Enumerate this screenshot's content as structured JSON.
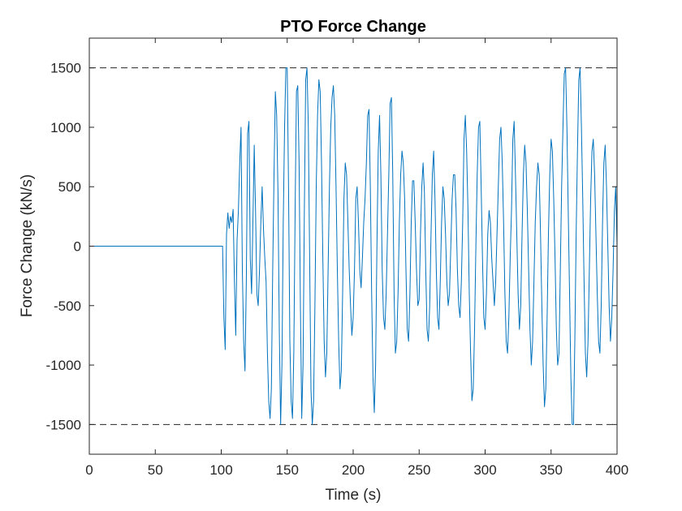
{
  "chart_data": {
    "type": "line",
    "title": "PTO Force Change",
    "xlabel": "Time (s)",
    "ylabel": "Force Change (kN/s)",
    "xlim": [
      0,
      400
    ],
    "ylim": [
      -1750,
      1750
    ],
    "xticks": [
      0,
      50,
      100,
      150,
      200,
      250,
      300,
      350,
      400
    ],
    "yticks": [
      1500,
      1000,
      500,
      0,
      -500,
      -1000,
      -1500
    ],
    "xtick_labels": [
      "0",
      "50",
      "100",
      "150",
      "200",
      "250",
      "300",
      "350",
      "400"
    ],
    "ytick_labels": [
      "1500",
      "1000",
      "500",
      "0",
      "-500",
      "-1000",
      "-1500"
    ],
    "grid": false,
    "reference_lines": [
      1500,
      -1500
    ],
    "colors": {
      "line": "#0072BD",
      "reference": "#262626",
      "axes": "#262626"
    },
    "series": [
      {
        "x": [
          0,
          50,
          100,
          101,
          102,
          103,
          104,
          105,
          106,
          107,
          108,
          109,
          110,
          111,
          112,
          113,
          114,
          115,
          116,
          117,
          118,
          119,
          120,
          121,
          122,
          123,
          124,
          125,
          126,
          127,
          128,
          129,
          130,
          131,
          132,
          133,
          134,
          135,
          136,
          137,
          138,
          139,
          140,
          141,
          142,
          143,
          144,
          145,
          146,
          147,
          148,
          149,
          150,
          151,
          152,
          153,
          154,
          155,
          156,
          157,
          158,
          159,
          160,
          161,
          162,
          163,
          164,
          165,
          166,
          167,
          168,
          169,
          170,
          171,
          172,
          173,
          174,
          175,
          176,
          177,
          178,
          179,
          180,
          181,
          182,
          183,
          184,
          185,
          186,
          187,
          188,
          189,
          190,
          191,
          192,
          193,
          194,
          195,
          196,
          197,
          198,
          199,
          200,
          201,
          202,
          203,
          204,
          205,
          206,
          207,
          208,
          209,
          210,
          211,
          212,
          213,
          214,
          215,
          216,
          217,
          218,
          219,
          220,
          221,
          222,
          223,
          224,
          225,
          226,
          227,
          228,
          229,
          230,
          231,
          232,
          233,
          234,
          235,
          236,
          237,
          238,
          239,
          240,
          241,
          242,
          243,
          244,
          245,
          246,
          247,
          248,
          249,
          250,
          251,
          252,
          253,
          254,
          255,
          256,
          257,
          258,
          259,
          260,
          261,
          262,
          263,
          264,
          265,
          266,
          267,
          268,
          269,
          270,
          271,
          272,
          273,
          274,
          275,
          276,
          277,
          278,
          279,
          280,
          281,
          282,
          283,
          284,
          285,
          286,
          287,
          288,
          289,
          290,
          291,
          292,
          293,
          294,
          295,
          296,
          297,
          298,
          299,
          300,
          301,
          302,
          303,
          304,
          305,
          306,
          307,
          308,
          309,
          310,
          311,
          312,
          313,
          314,
          315,
          316,
          317,
          318,
          319,
          320,
          321,
          322,
          323,
          324,
          325,
          326,
          327,
          328,
          329,
          330,
          331,
          332,
          333,
          334,
          335,
          336,
          337,
          338,
          339,
          340,
          341,
          342,
          343,
          344,
          345,
          346,
          347,
          348,
          349,
          350,
          351,
          352,
          353,
          354,
          355,
          356,
          357,
          358,
          359,
          360,
          361,
          362,
          363,
          364,
          365,
          366,
          367,
          368,
          369,
          370,
          371,
          372,
          373,
          374,
          375,
          376,
          377,
          378,
          379,
          380,
          381,
          382,
          383,
          384,
          385,
          386,
          387,
          388,
          389,
          390,
          391,
          392,
          393,
          394,
          395,
          396,
          397,
          398,
          399,
          400
        ],
        "y": [
          0,
          0,
          0,
          0,
          -600,
          -870,
          100,
          280,
          150,
          250,
          200,
          310,
          -300,
          -750,
          50,
          300,
          700,
          1000,
          -200,
          -800,
          -1050,
          -300,
          950,
          1050,
          -100,
          -400,
          200,
          850,
          300,
          -400,
          -500,
          -200,
          200,
          500,
          150,
          -100,
          -300,
          -900,
          -1300,
          -1450,
          -1200,
          -200,
          600,
          1300,
          1100,
          450,
          -700,
          -1500,
          -1000,
          200,
          1000,
          1500,
          1500,
          500,
          -800,
          -1300,
          -1450,
          -900,
          300,
          1300,
          1350,
          700,
          -500,
          -1450,
          -1000,
          300,
          1400,
          1500,
          1000,
          -100,
          -1200,
          -1500,
          -1300,
          -500,
          500,
          1100,
          1400,
          1300,
          700,
          -100,
          -800,
          -1100,
          -900,
          -200,
          500,
          1000,
          1250,
          1350,
          1100,
          500,
          -200,
          -800,
          -1200,
          -1050,
          -400,
          400,
          700,
          600,
          200,
          -200,
          -500,
          -750,
          -600,
          -200,
          400,
          500,
          200,
          -200,
          -350,
          -100,
          200,
          400,
          700,
          1100,
          1150,
          500,
          -400,
          -1100,
          -1400,
          -1000,
          0,
          800,
          1100,
          600,
          -200,
          -600,
          -700,
          -400,
          100,
          600,
          1200,
          1250,
          600,
          -400,
          -900,
          -800,
          -400,
          200,
          600,
          800,
          700,
          400,
          -200,
          -700,
          -800,
          -400,
          200,
          550,
          550,
          200,
          -200,
          -500,
          -450,
          100,
          500,
          700,
          450,
          -200,
          -700,
          -800,
          -500,
          100,
          600,
          800,
          400,
          -200,
          -600,
          -700,
          -300,
          200,
          500,
          400,
          100,
          -300,
          -500,
          -400,
          0,
          400,
          600,
          600,
          300,
          -200,
          -500,
          -600,
          -300,
          200,
          900,
          1100,
          800,
          300,
          -400,
          -900,
          -1300,
          -1200,
          -700,
          0,
          600,
          1000,
          1050,
          500,
          -100,
          -600,
          -700,
          -400,
          100,
          300,
          200,
          -100,
          -300,
          -500,
          -300,
          100,
          500,
          900,
          1000,
          700,
          200,
          -400,
          -800,
          -900,
          -600,
          -100,
          300,
          900,
          1050,
          600,
          100,
          -400,
          -700,
          -500,
          100,
          600,
          850,
          700,
          300,
          -200,
          -700,
          -1000,
          -800,
          -300,
          200,
          500,
          700,
          600,
          100,
          -500,
          -1000,
          -1350,
          -1200,
          -600,
          100,
          600,
          900,
          800,
          400,
          -100,
          -700,
          -1000,
          -900,
          -200,
          500,
          1000,
          1450,
          1500,
          1000,
          300,
          -400,
          -1100,
          -1500,
          -1500,
          -800,
          100,
          800,
          1400,
          1500,
          1000,
          400,
          -300,
          -900,
          -1100,
          -800,
          -200,
          400,
          800,
          900,
          600,
          100,
          -400,
          -800,
          -900,
          -500,
          200,
          700,
          850,
          500,
          0,
          -500,
          -800,
          -600,
          -200,
          300,
          500,
          0
        ]
      }
    ]
  }
}
